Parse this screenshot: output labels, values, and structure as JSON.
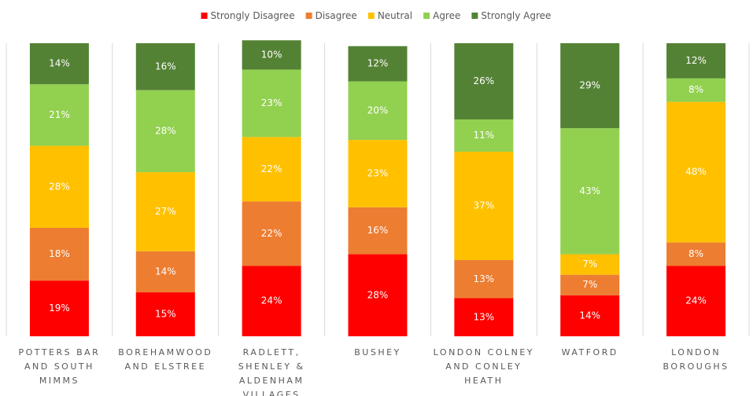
{
  "chart_data": {
    "type": "stacked_bar",
    "categories": [
      "POTTERS BAR AND SOUTH MIMMS",
      "BOREHAMWOOD AND ELSTREE",
      "RADLETT, SHENLEY & ALDENHAM VILLAGES",
      "BUSHEY",
      "LONDON COLNEY AND CONLEY HEATH",
      "WATFORD",
      "LONDON BOROUGHS"
    ],
    "series": [
      {
        "name": "Strongly Disagree",
        "color": "#ff0000",
        "values": [
          19,
          15,
          24,
          28,
          13,
          14,
          24
        ],
        "value_labels": [
          "19%",
          "15%",
          "24%",
          "28%",
          "13%",
          "14%",
          "24%"
        ]
      },
      {
        "name": "Disagree",
        "color": "#ed7d31",
        "values": [
          18,
          14,
          22,
          16,
          13,
          7,
          8
        ],
        "value_labels": [
          "18%",
          "14%",
          "22%",
          "16%",
          "13%",
          "7%",
          "8%"
        ]
      },
      {
        "name": "Neutral",
        "color": "#ffc000",
        "values": [
          28,
          27,
          22,
          23,
          37,
          7,
          48
        ],
        "value_labels": [
          "28%",
          "27%",
          "22%",
          "23%",
          "37%",
          "7%",
          "48%"
        ]
      },
      {
        "name": "Agree",
        "color": "#92d050",
        "values": [
          21,
          28,
          23,
          20,
          11,
          43,
          8
        ],
        "value_labels": [
          "21%",
          "28%",
          "23%",
          "20%",
          "11%",
          "43%",
          "8%"
        ]
      },
      {
        "name": "Strongly Agree",
        "color": "#548235",
        "values": [
          14,
          16,
          10,
          12,
          26,
          29,
          12
        ],
        "value_labels": [
          "14%",
          "16%",
          "10%",
          "12%",
          "26%",
          "29%",
          "12%"
        ]
      }
    ],
    "ylim": [
      0,
      100
    ],
    "legend": "top"
  }
}
